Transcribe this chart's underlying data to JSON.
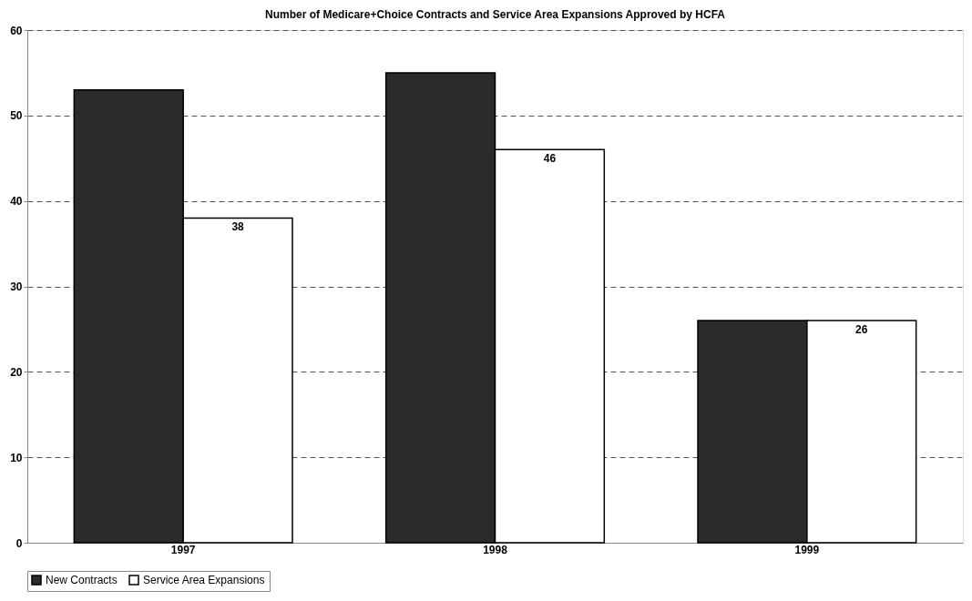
{
  "chart_data": {
    "type": "bar",
    "title": "Number of Medicare+Choice Contracts and Service Area Expansions Approved by HCFA",
    "categories": [
      "1997",
      "1998",
      "1999"
    ],
    "series": [
      {
        "name": "New Contracts",
        "color": "#2b2b2b",
        "values": [
          53,
          55,
          26
        ]
      },
      {
        "name": "Service Area Expansions",
        "color": "#ffffff",
        "values": [
          38,
          46,
          26
        ],
        "value_labels": [
          "38",
          "46",
          "26"
        ]
      }
    ],
    "ylim": [
      0,
      60
    ],
    "yticks": [
      0,
      10,
      20,
      30,
      40,
      50,
      60
    ],
    "grid": "y",
    "legend": "bottom"
  }
}
